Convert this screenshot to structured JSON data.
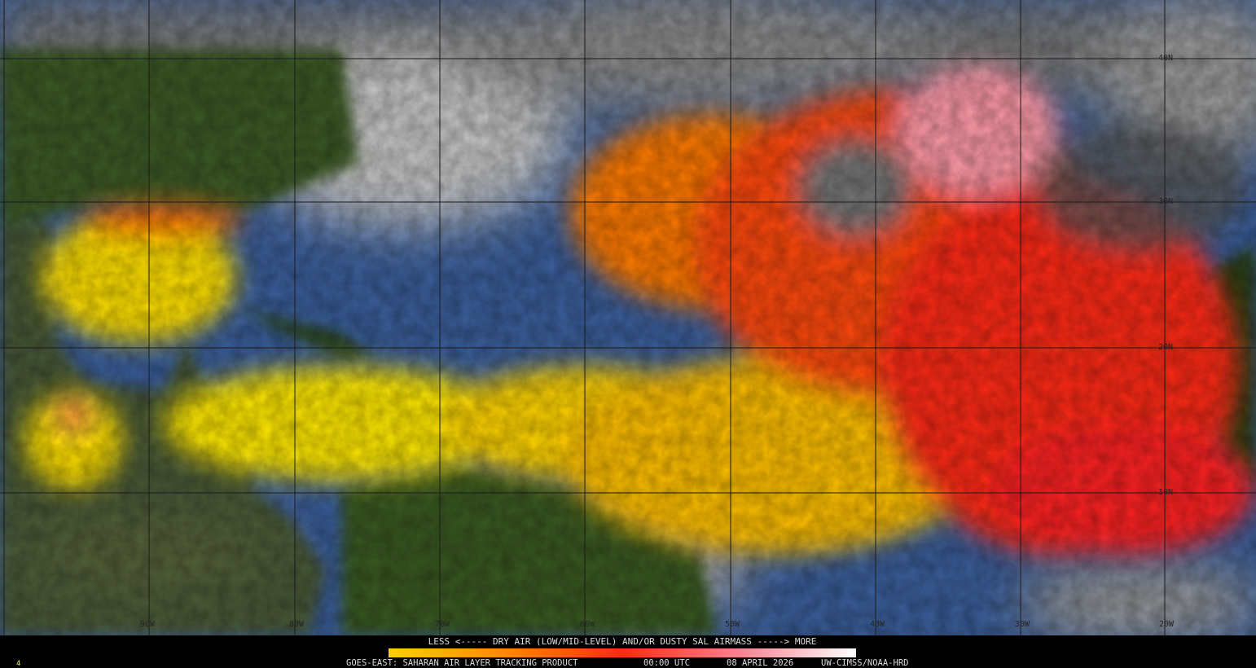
{
  "map": {
    "longitude_labels": [
      "90W",
      "80W",
      "70W",
      "60W",
      "50W",
      "40W",
      "30W",
      "20W"
    ],
    "latitude_labels": [
      "40N",
      "30N",
      "20N",
      "10N"
    ],
    "colors": {
      "ocean": "#3b5f9c",
      "land": "#2f4a1f",
      "cloud": "#b8b8b8",
      "dust_low": "#ffee00",
      "dust_mid": "#ff7a00",
      "dust_high": "#ff2020",
      "dust_max": "#ffc0c8"
    }
  },
  "legend": {
    "title": "LESS <----- DRY AIR (LOW/MID-LEVEL) AND/OR DUSTY SAL AIRMASS -----> MORE",
    "colorbar": [
      "#ffd000",
      "#ff8800",
      "#ff2a10",
      "#ff8090",
      "#ffffff"
    ]
  },
  "footer": {
    "product": "GOES-EAST: SAHARAN AIR LAYER TRACKING PRODUCT",
    "time": "00:00 UTC",
    "date": "08 APRIL 2026",
    "credit": "UW-CIMSS/NOAA-HRD",
    "frame": "4"
  }
}
